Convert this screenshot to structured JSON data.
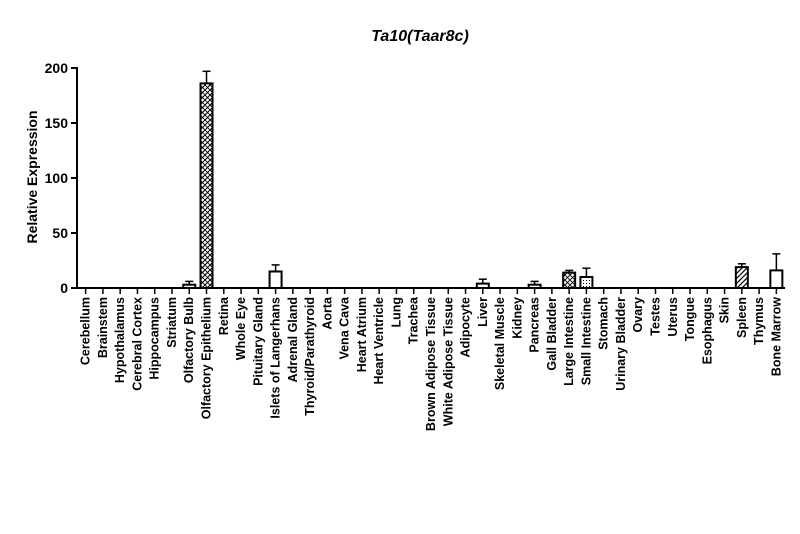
{
  "chart_data": {
    "type": "bar",
    "title": "Ta10(Taar8c)",
    "xlabel": "",
    "ylabel": "Relative Expression",
    "ylim": [
      0,
      200
    ],
    "yticks": [
      0,
      50,
      100,
      150,
      200
    ],
    "categories": [
      "Cerebellum",
      "Brainstem",
      "Hypothalamus",
      "Cerebral Cortex",
      "Hippocampus",
      "Striatum",
      "Olfactory Bulb",
      "Olfactory Epithelium",
      "Retina",
      "Whole Eye",
      "Pituitary Gland",
      "Islets of Langerhans",
      "Adrenal Gland",
      "Thyroid/Parathyroid",
      "Aorta",
      "Vena Cava",
      "Heart Atrium",
      "Heart Ventricle",
      "Lung",
      "Trachea",
      "Brown Adipose Tissue",
      "White Adipose Tissue",
      "Adipocyte",
      "Liver",
      "Skeletal Muscle",
      "Kidney",
      "Pancreas",
      "Gall Bladder",
      "Large Intestine",
      "Small Intestine",
      "Stomach",
      "Urinary Bladder",
      "Ovary",
      "Testes",
      "Uterus",
      "Tongue",
      "Esophagus",
      "Skin",
      "Spleen",
      "Thymus",
      "Bone Marrow"
    ],
    "values": [
      0,
      0,
      0,
      0,
      0,
      0,
      3,
      186,
      0,
      0,
      0,
      15,
      0,
      0,
      0,
      0,
      0,
      0,
      0,
      0,
      0,
      0,
      0,
      4,
      0,
      0,
      3,
      0,
      14,
      10,
      0,
      0,
      0,
      0,
      0,
      0,
      0,
      0,
      19,
      0,
      16
    ],
    "errors": [
      0,
      0,
      0,
      0,
      0,
      0,
      3,
      11,
      0,
      0,
      0,
      6,
      0,
      0,
      0,
      0,
      0,
      0,
      0,
      0,
      0,
      0,
      0,
      4,
      0,
      0,
      3,
      0,
      2,
      8,
      0,
      0,
      0,
      0,
      0,
      0,
      0,
      0,
      3,
      0,
      15
    ],
    "patterns": [
      "open",
      "open",
      "open",
      "open",
      "open",
      "open",
      "open",
      "diagonal-cross",
      "open",
      "open",
      "open",
      "open",
      "open",
      "open",
      "open",
      "open",
      "open",
      "open",
      "open",
      "open",
      "open",
      "open",
      "open",
      "open",
      "open",
      "open",
      "open",
      "open",
      "cross",
      "dots",
      "open",
      "open",
      "open",
      "open",
      "open",
      "open",
      "open",
      "open",
      "diagonal",
      "open",
      "open"
    ],
    "grid": false,
    "legend": "none"
  }
}
